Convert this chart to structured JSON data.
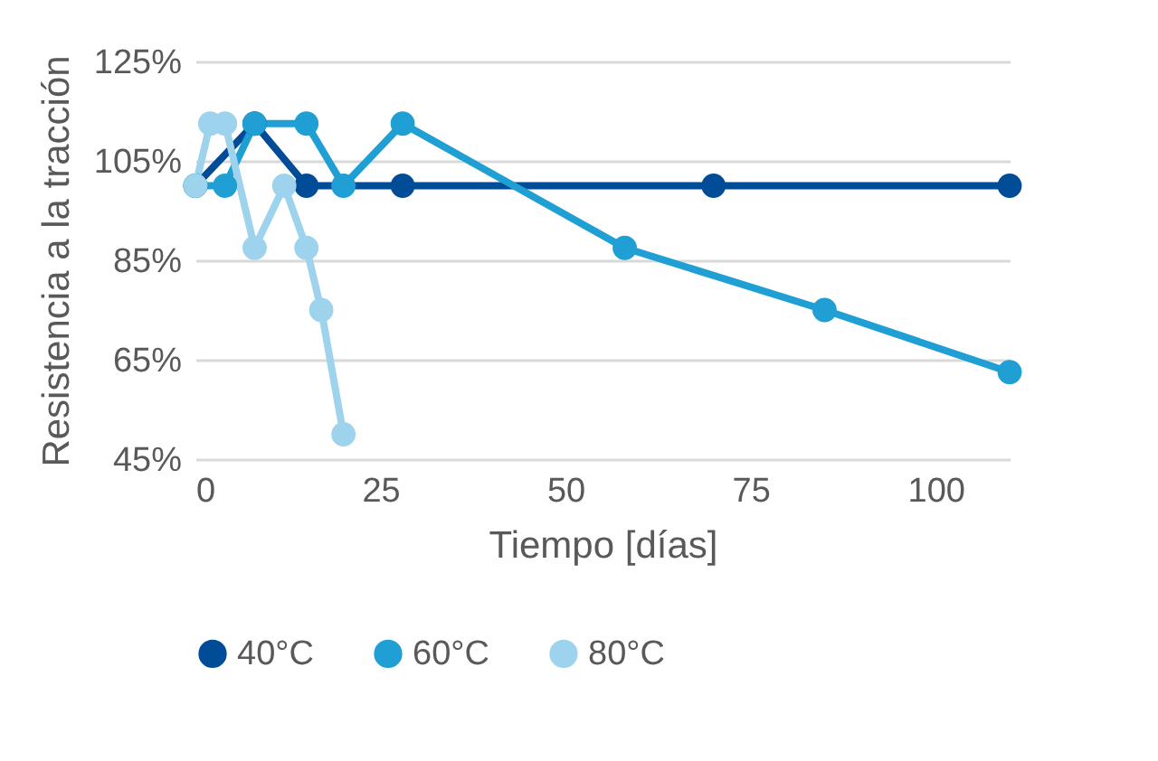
{
  "chart_data": {
    "type": "line",
    "xlabel": "Tiempo [días]",
    "ylabel": "Resistencia a la tracción",
    "xlim": [
      0,
      110
    ],
    "xticks": [
      0,
      25,
      50,
      75,
      100
    ],
    "ylim": [
      45,
      125
    ],
    "yticks": [
      {
        "value": 45,
        "label": "45%"
      },
      {
        "value": 65,
        "label": "65%"
      },
      {
        "value": 85,
        "label": "85%"
      },
      {
        "value": 105,
        "label": "105%"
      },
      {
        "value": 125,
        "label": "125%"
      }
    ],
    "grid": "y",
    "legend": "bottom",
    "marker": "circle",
    "line_style": "solid",
    "series": [
      {
        "name": "40°C",
        "color": "#004c97",
        "x": [
          0,
          8,
          15,
          28,
          70,
          110
        ],
        "values": [
          100,
          112.5,
          100,
          100,
          100,
          100
        ]
      },
      {
        "name": "60°C",
        "color": "#1f9fd4",
        "x": [
          0,
          4,
          8,
          15,
          20,
          28,
          58,
          85,
          110
        ],
        "values": [
          100,
          100,
          112.5,
          112.5,
          100,
          112.5,
          87.5,
          75,
          62.5
        ]
      },
      {
        "name": "80°C",
        "color": "#9dd3ec",
        "x": [
          0,
          2,
          4,
          8,
          12,
          15,
          17,
          20
        ],
        "values": [
          100,
          112.5,
          112.5,
          87.5,
          100,
          87.5,
          75,
          50
        ]
      }
    ]
  }
}
